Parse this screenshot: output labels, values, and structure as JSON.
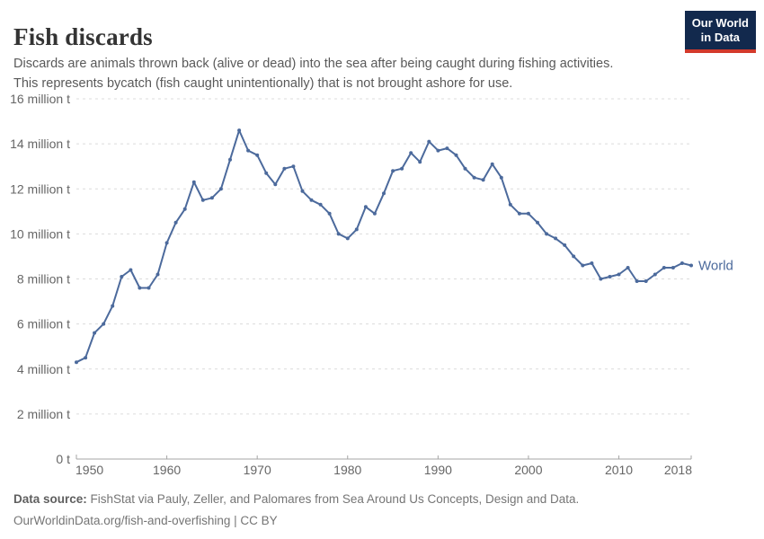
{
  "header": {
    "title": "Fish discards",
    "logo": {
      "line1": "Our World",
      "line2": "in Data"
    }
  },
  "subtitle": {
    "line1": "Discards are animals thrown back (alive or dead) into the sea after being caught during fishing activities.",
    "line2": "This represents bycatch (fish caught unintentionally) that is not brought ashore for use."
  },
  "colors": {
    "logo_bg": "#12294d",
    "logo_accent": "#d33a2b",
    "grid": "#dcdcdc",
    "axis": "#a5a5a5",
    "tick_label": "#666666"
  },
  "chart_data": {
    "type": "line",
    "title": "Fish discards",
    "unit": "million t",
    "grid": "horizontal-dashed",
    "legend_position": "end-of-line",
    "xlim": [
      1950,
      2018
    ],
    "ylim": [
      0,
      16
    ],
    "xticks": [
      1950,
      1960,
      1970,
      1980,
      1990,
      2000,
      2010,
      2018
    ],
    "yticks": [
      0,
      2,
      4,
      6,
      8,
      10,
      12,
      14,
      16
    ],
    "ytick_labels": [
      "0 t",
      "2 million t",
      "4 million t",
      "6 million t",
      "8 million t",
      "10 million t",
      "12 million t",
      "14 million t",
      "16 million t"
    ],
    "x": [
      1950,
      1951,
      1952,
      1953,
      1954,
      1955,
      1956,
      1957,
      1958,
      1959,
      1960,
      1961,
      1962,
      1963,
      1964,
      1965,
      1966,
      1967,
      1968,
      1969,
      1970,
      1971,
      1972,
      1973,
      1974,
      1975,
      1976,
      1977,
      1978,
      1979,
      1980,
      1981,
      1982,
      1983,
      1984,
      1985,
      1986,
      1987,
      1988,
      1989,
      1990,
      1991,
      1992,
      1993,
      1994,
      1995,
      1996,
      1997,
      1998,
      1999,
      2000,
      2001,
      2002,
      2003,
      2004,
      2005,
      2006,
      2007,
      2008,
      2009,
      2010,
      2011,
      2012,
      2013,
      2014,
      2015,
      2016,
      2017,
      2018
    ],
    "series": [
      {
        "name": "World",
        "color": "#4C6A9C",
        "values": [
          4.3,
          4.5,
          5.6,
          6.0,
          6.8,
          8.1,
          8.4,
          7.6,
          7.6,
          8.2,
          9.6,
          10.5,
          11.1,
          12.3,
          11.5,
          11.6,
          12.0,
          13.3,
          14.6,
          13.7,
          13.5,
          12.7,
          12.2,
          12.9,
          13.0,
          11.9,
          11.5,
          11.3,
          10.9,
          10.0,
          9.8,
          10.2,
          11.2,
          10.9,
          11.8,
          12.8,
          12.9,
          13.6,
          13.2,
          14.1,
          13.7,
          13.8,
          13.5,
          12.9,
          12.5,
          12.4,
          13.1,
          12.5,
          11.3,
          10.9,
          10.9,
          10.5,
          10.0,
          9.8,
          9.5,
          9.0,
          8.6,
          8.7,
          8.0,
          8.1,
          8.2,
          8.5,
          7.9,
          7.9,
          8.2,
          8.5,
          8.5,
          8.7,
          8.6
        ]
      }
    ]
  },
  "footer": {
    "source_label": "Data source:",
    "source_text": " FishStat via Pauly, Zeller, and Palomares from Sea Around Us Concepts, Design and Data.",
    "license_line": "OurWorldinData.org/fish-and-overfishing | CC BY"
  }
}
